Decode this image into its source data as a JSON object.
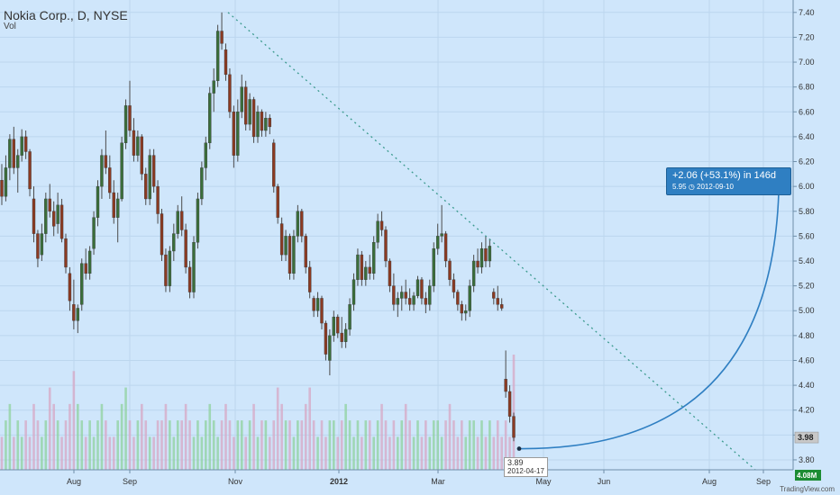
{
  "header": {
    "title": "Nokia Corp., D, NYSE",
    "subtitle": "Vol"
  },
  "brand": "TradingView.com",
  "colors": {
    "background": "#cfe6fb",
    "up": "#3a6e3a",
    "down": "#8b3a22",
    "projection": "#2f7fc2",
    "trendline": "#3b9a8e",
    "vol_up": "#8fd19e",
    "vol_down": "#d7a7c4",
    "last_price_bg": "#c8c8c8",
    "vol_label_bg": "#1c8c33"
  },
  "projection": {
    "line1": "+2.06 (+53.1%) in 146d",
    "line2": "5.95",
    "icon": "clock-icon",
    "date": "2012-09-10"
  },
  "start_label": {
    "price": "3.89",
    "date": "2012-04-17"
  },
  "last_price": "3.98",
  "volume_label": "4.08M",
  "chart_data": {
    "type": "candlestick",
    "title": "Nokia Corp., D, NYSE",
    "y_ticks": [
      "7.40",
      "7.20",
      "7.00",
      "6.80",
      "6.60",
      "6.40",
      "6.20",
      "6.00",
      "5.80",
      "5.60",
      "5.40",
      "5.20",
      "5.00",
      "4.80",
      "4.60",
      "4.40",
      "4.20",
      "4.00",
      "3.80"
    ],
    "x_labels": [
      "Aug",
      "Sep",
      "Nov",
      "2012",
      "Mar",
      "May",
      "Jun",
      "Aug",
      "Sep"
    ],
    "ylim": [
      3.72,
      7.5
    ],
    "grid": true,
    "candles": [
      {
        "o": 6.05,
        "h": 6.18,
        "l": 5.85,
        "c": 5.92
      },
      {
        "o": 5.92,
        "h": 6.25,
        "l": 5.88,
        "c": 6.15
      },
      {
        "o": 6.15,
        "h": 6.42,
        "l": 6.05,
        "c": 6.38
      },
      {
        "o": 6.38,
        "h": 6.48,
        "l": 6.1,
        "c": 6.15
      },
      {
        "o": 6.15,
        "h": 6.3,
        "l": 5.95,
        "c": 6.25
      },
      {
        "o": 6.25,
        "h": 6.46,
        "l": 6.2,
        "c": 6.4
      },
      {
        "o": 6.4,
        "h": 6.45,
        "l": 6.22,
        "c": 6.28
      },
      {
        "o": 6.28,
        "h": 6.3,
        "l": 5.92,
        "c": 5.98
      },
      {
        "o": 5.9,
        "h": 6.0,
        "l": 5.55,
        "c": 5.62
      },
      {
        "o": 5.62,
        "h": 5.65,
        "l": 5.35,
        "c": 5.42
      },
      {
        "o": 5.45,
        "h": 5.7,
        "l": 5.4,
        "c": 5.62
      },
      {
        "o": 5.62,
        "h": 5.95,
        "l": 5.55,
        "c": 5.9
      },
      {
        "o": 5.9,
        "h": 6.02,
        "l": 5.75,
        "c": 5.8
      },
      {
        "o": 5.8,
        "h": 5.88,
        "l": 5.6,
        "c": 5.68
      },
      {
        "o": 5.7,
        "h": 5.95,
        "l": 5.62,
        "c": 5.85
      },
      {
        "o": 5.85,
        "h": 5.9,
        "l": 5.55,
        "c": 5.58
      },
      {
        "o": 5.58,
        "h": 5.62,
        "l": 5.3,
        "c": 5.35
      },
      {
        "o": 5.3,
        "h": 5.35,
        "l": 5.0,
        "c": 5.08
      },
      {
        "o": 5.05,
        "h": 5.25,
        "l": 4.85,
        "c": 4.92
      },
      {
        "o": 4.92,
        "h": 5.05,
        "l": 4.82,
        "c": 5.02
      },
      {
        "o": 5.05,
        "h": 5.42,
        "l": 5.0,
        "c": 5.38
      },
      {
        "o": 5.38,
        "h": 5.5,
        "l": 5.25,
        "c": 5.3
      },
      {
        "o": 5.3,
        "h": 5.52,
        "l": 5.25,
        "c": 5.48
      },
      {
        "o": 5.5,
        "h": 5.8,
        "l": 5.45,
        "c": 5.75
      },
      {
        "o": 5.75,
        "h": 6.05,
        "l": 5.68,
        "c": 6.0
      },
      {
        "o": 6.0,
        "h": 6.3,
        "l": 5.9,
        "c": 6.25
      },
      {
        "o": 6.25,
        "h": 6.45,
        "l": 6.1,
        "c": 6.15
      },
      {
        "o": 6.15,
        "h": 6.25,
        "l": 5.9,
        "c": 5.95
      },
      {
        "o": 5.95,
        "h": 6.05,
        "l": 5.7,
        "c": 5.75
      },
      {
        "o": 5.75,
        "h": 5.95,
        "l": 5.55,
        "c": 5.9
      },
      {
        "o": 5.9,
        "h": 6.4,
        "l": 5.88,
        "c": 6.35
      },
      {
        "o": 6.35,
        "h": 6.7,
        "l": 6.3,
        "c": 6.65
      },
      {
        "o": 6.65,
        "h": 6.85,
        "l": 6.4,
        "c": 6.45
      },
      {
        "o": 6.45,
        "h": 6.55,
        "l": 6.2,
        "c": 6.25
      },
      {
        "o": 6.25,
        "h": 6.45,
        "l": 6.2,
        "c": 6.4
      },
      {
        "o": 6.4,
        "h": 6.42,
        "l": 6.05,
        "c": 6.1
      },
      {
        "o": 6.1,
        "h": 6.15,
        "l": 5.85,
        "c": 5.9
      },
      {
        "o": 5.9,
        "h": 6.3,
        "l": 5.85,
        "c": 6.25
      },
      {
        "o": 6.25,
        "h": 6.3,
        "l": 5.95,
        "c": 6.0
      },
      {
        "o": 6.0,
        "h": 6.05,
        "l": 5.7,
        "c": 5.78
      },
      {
        "o": 5.78,
        "h": 5.82,
        "l": 5.4,
        "c": 5.45
      },
      {
        "o": 5.45,
        "h": 5.5,
        "l": 5.15,
        "c": 5.2
      },
      {
        "o": 5.2,
        "h": 5.52,
        "l": 5.15,
        "c": 5.48
      },
      {
        "o": 5.48,
        "h": 5.7,
        "l": 5.4,
        "c": 5.62
      },
      {
        "o": 5.62,
        "h": 5.85,
        "l": 5.58,
        "c": 5.8
      },
      {
        "o": 5.8,
        "h": 5.92,
        "l": 5.6,
        "c": 5.65
      },
      {
        "o": 5.65,
        "h": 5.7,
        "l": 5.3,
        "c": 5.35
      },
      {
        "o": 5.35,
        "h": 5.4,
        "l": 5.1,
        "c": 5.15
      },
      {
        "o": 5.15,
        "h": 5.6,
        "l": 5.1,
        "c": 5.55
      },
      {
        "o": 5.55,
        "h": 5.95,
        "l": 5.5,
        "c": 5.9
      },
      {
        "o": 5.9,
        "h": 6.2,
        "l": 5.85,
        "c": 6.15
      },
      {
        "o": 6.15,
        "h": 6.4,
        "l": 6.05,
        "c": 6.35
      },
      {
        "o": 6.35,
        "h": 6.8,
        "l": 6.3,
        "c": 6.75
      },
      {
        "o": 6.75,
        "h": 6.95,
        "l": 6.6,
        "c": 6.85
      },
      {
        "o": 6.85,
        "h": 7.3,
        "l": 6.8,
        "c": 7.25
      },
      {
        "o": 7.25,
        "h": 7.4,
        "l": 7.1,
        "c": 7.15
      },
      {
        "o": 7.1,
        "h": 7.15,
        "l": 6.85,
        "c": 6.9
      },
      {
        "o": 6.9,
        "h": 6.95,
        "l": 6.55,
        "c": 6.6
      },
      {
        "o": 6.6,
        "h": 6.65,
        "l": 6.15,
        "c": 6.25
      },
      {
        "o": 6.25,
        "h": 6.7,
        "l": 6.2,
        "c": 6.6
      },
      {
        "o": 6.6,
        "h": 6.9,
        "l": 6.55,
        "c": 6.8
      },
      {
        "o": 6.8,
        "h": 6.85,
        "l": 6.45,
        "c": 6.5
      },
      {
        "o": 6.5,
        "h": 6.75,
        "l": 6.45,
        "c": 6.7
      },
      {
        "o": 6.7,
        "h": 6.72,
        "l": 6.35,
        "c": 6.4
      },
      {
        "o": 6.4,
        "h": 6.65,
        "l": 6.35,
        "c": 6.6
      },
      {
        "o": 6.6,
        "h": 6.62,
        "l": 6.4,
        "c": 6.45
      },
      {
        "o": 6.45,
        "h": 6.6,
        "l": 6.4,
        "c": 6.55
      },
      {
        "o": 6.55,
        "h": 6.58,
        "l": 6.42,
        "c": 6.48
      },
      {
        "o": 6.35,
        "h": 6.38,
        "l": 5.95,
        "c": 6.0
      },
      {
        "o": 6.0,
        "h": 6.02,
        "l": 5.7,
        "c": 5.75
      },
      {
        "o": 5.7,
        "h": 5.75,
        "l": 5.4,
        "c": 5.45
      },
      {
        "o": 5.45,
        "h": 5.65,
        "l": 5.4,
        "c": 5.6
      },
      {
        "o": 5.6,
        "h": 5.62,
        "l": 5.25,
        "c": 5.3
      },
      {
        "o": 5.3,
        "h": 5.65,
        "l": 5.25,
        "c": 5.6
      },
      {
        "o": 5.6,
        "h": 5.85,
        "l": 5.55,
        "c": 5.8
      },
      {
        "o": 5.8,
        "h": 5.82,
        "l": 5.55,
        "c": 5.6
      },
      {
        "o": 5.6,
        "h": 5.62,
        "l": 5.3,
        "c": 5.35
      },
      {
        "o": 5.35,
        "h": 5.4,
        "l": 5.1,
        "c": 5.15
      },
      {
        "o": 5.1,
        "h": 5.12,
        "l": 4.95,
        "c": 5.0
      },
      {
        "o": 5.0,
        "h": 5.15,
        "l": 4.95,
        "c": 5.1
      },
      {
        "o": 5.1,
        "h": 5.12,
        "l": 4.85,
        "c": 4.9
      },
      {
        "o": 4.9,
        "h": 4.92,
        "l": 4.6,
        "c": 4.65
      },
      {
        "o": 4.6,
        "h": 4.85,
        "l": 4.48,
        "c": 4.8
      },
      {
        "o": 4.8,
        "h": 5.0,
        "l": 4.75,
        "c": 4.95
      },
      {
        "o": 4.95,
        "h": 4.97,
        "l": 4.78,
        "c": 4.82
      },
      {
        "o": 4.82,
        "h": 4.95,
        "l": 4.7,
        "c": 4.75
      },
      {
        "o": 4.75,
        "h": 4.9,
        "l": 4.7,
        "c": 4.85
      },
      {
        "o": 4.85,
        "h": 5.1,
        "l": 4.8,
        "c": 5.05
      },
      {
        "o": 5.05,
        "h": 5.3,
        "l": 5.0,
        "c": 5.25
      },
      {
        "o": 5.25,
        "h": 5.5,
        "l": 5.2,
        "c": 5.45
      },
      {
        "o": 5.45,
        "h": 5.48,
        "l": 5.2,
        "c": 5.25
      },
      {
        "o": 5.25,
        "h": 5.4,
        "l": 5.2,
        "c": 5.35
      },
      {
        "o": 5.35,
        "h": 5.45,
        "l": 5.25,
        "c": 5.3
      },
      {
        "o": 5.3,
        "h": 5.6,
        "l": 5.25,
        "c": 5.55
      },
      {
        "o": 5.55,
        "h": 5.78,
        "l": 5.5,
        "c": 5.72
      },
      {
        "o": 5.72,
        "h": 5.8,
        "l": 5.6,
        "c": 5.65
      },
      {
        "o": 5.65,
        "h": 5.68,
        "l": 5.35,
        "c": 5.4
      },
      {
        "o": 5.4,
        "h": 5.42,
        "l": 5.15,
        "c": 5.2
      },
      {
        "o": 5.2,
        "h": 5.3,
        "l": 5.0,
        "c": 5.05
      },
      {
        "o": 5.05,
        "h": 5.15,
        "l": 4.95,
        "c": 5.1
      },
      {
        "o": 5.1,
        "h": 5.2,
        "l": 5.0,
        "c": 5.15
      },
      {
        "o": 5.15,
        "h": 5.25,
        "l": 5.05,
        "c": 5.1
      },
      {
        "o": 5.1,
        "h": 5.18,
        "l": 5.0,
        "c": 5.05
      },
      {
        "o": 5.05,
        "h": 5.15,
        "l": 5.0,
        "c": 5.12
      },
      {
        "o": 5.12,
        "h": 5.28,
        "l": 5.1,
        "c": 5.25
      },
      {
        "o": 5.25,
        "h": 5.27,
        "l": 5.05,
        "c": 5.1
      },
      {
        "o": 5.1,
        "h": 5.15,
        "l": 4.98,
        "c": 5.05
      },
      {
        "o": 5.05,
        "h": 5.25,
        "l": 5.0,
        "c": 5.2
      },
      {
        "o": 5.2,
        "h": 5.55,
        "l": 5.15,
        "c": 5.5
      },
      {
        "o": 5.5,
        "h": 5.7,
        "l": 5.45,
        "c": 5.6
      },
      {
        "o": 5.6,
        "h": 5.85,
        "l": 5.55,
        "c": 5.62
      },
      {
        "o": 5.62,
        "h": 5.64,
        "l": 5.35,
        "c": 5.4
      },
      {
        "o": 5.4,
        "h": 5.42,
        "l": 5.2,
        "c": 5.25
      },
      {
        "o": 5.25,
        "h": 5.3,
        "l": 5.1,
        "c": 5.15
      },
      {
        "o": 5.15,
        "h": 5.17,
        "l": 5.0,
        "c": 5.05
      },
      {
        "o": 5.05,
        "h": 5.08,
        "l": 4.92,
        "c": 4.98
      },
      {
        "o": 4.98,
        "h": 5.05,
        "l": 4.92,
        "c": 5.0
      },
      {
        "o": 5.0,
        "h": 5.25,
        "l": 4.95,
        "c": 5.2
      },
      {
        "o": 5.2,
        "h": 5.45,
        "l": 5.15,
        "c": 5.4
      },
      {
        "o": 5.4,
        "h": 5.5,
        "l": 5.3,
        "c": 5.35
      },
      {
        "o": 5.35,
        "h": 5.55,
        "l": 5.3,
        "c": 5.5
      },
      {
        "o": 5.5,
        "h": 5.6,
        "l": 5.35,
        "c": 5.4
      },
      {
        "o": 5.4,
        "h": 5.58,
        "l": 5.35,
        "c": 5.52
      },
      {
        "o": 5.15,
        "h": 5.18,
        "l": 5.05,
        "c": 5.1
      },
      {
        "o": 5.1,
        "h": 5.2,
        "l": 5.0,
        "c": 5.05
      },
      {
        "o": 5.05,
        "h": 5.1,
        "l": 5.0,
        "c": 5.02
      },
      {
        "o": 4.45,
        "h": 4.68,
        "l": 4.3,
        "c": 4.35
      },
      {
        "o": 4.35,
        "h": 4.4,
        "l": 4.1,
        "c": 4.15
      },
      {
        "o": 4.15,
        "h": 4.18,
        "l": 3.95,
        "c": 3.98
      }
    ],
    "volume": [
      2,
      3,
      4,
      2,
      3,
      2,
      3,
      2,
      4,
      3,
      2,
      3,
      5,
      4,
      3,
      2,
      3,
      4,
      6,
      4,
      3,
      2,
      3,
      2,
      3,
      4,
      3,
      2,
      2,
      3,
      4,
      5,
      3,
      2,
      3,
      4,
      3,
      2,
      2,
      3,
      3,
      4,
      3,
      2,
      3,
      3,
      4,
      3,
      2,
      3,
      2,
      3,
      4,
      3,
      2,
      3,
      4,
      3,
      2,
      3,
      3,
      2,
      3,
      4,
      2,
      3,
      3,
      2,
      3,
      5,
      4,
      3,
      3,
      2,
      3,
      3,
      4,
      5,
      3,
      2,
      3,
      2,
      3,
      3,
      2,
      3,
      4,
      3,
      2,
      3,
      2,
      3,
      3,
      2,
      3,
      4,
      3,
      2,
      3,
      2,
      3,
      4,
      3,
      2,
      3,
      2,
      3,
      2,
      3,
      3,
      2,
      3,
      4,
      3,
      2,
      3,
      2,
      3,
      3,
      2,
      3,
      2,
      3,
      2,
      3,
      2,
      3,
      2,
      7,
      6,
      4,
      2
    ],
    "trendline": {
      "from": {
        "date": "2011-10-27",
        "price": 7.4
      },
      "to": {
        "date": "2012-09-05",
        "price": 3.72
      }
    },
    "projection_arc": {
      "from": {
        "date": "2012-04-17",
        "price": 3.89
      },
      "to": {
        "date": "2012-09-10",
        "price": 5.95
      }
    }
  }
}
